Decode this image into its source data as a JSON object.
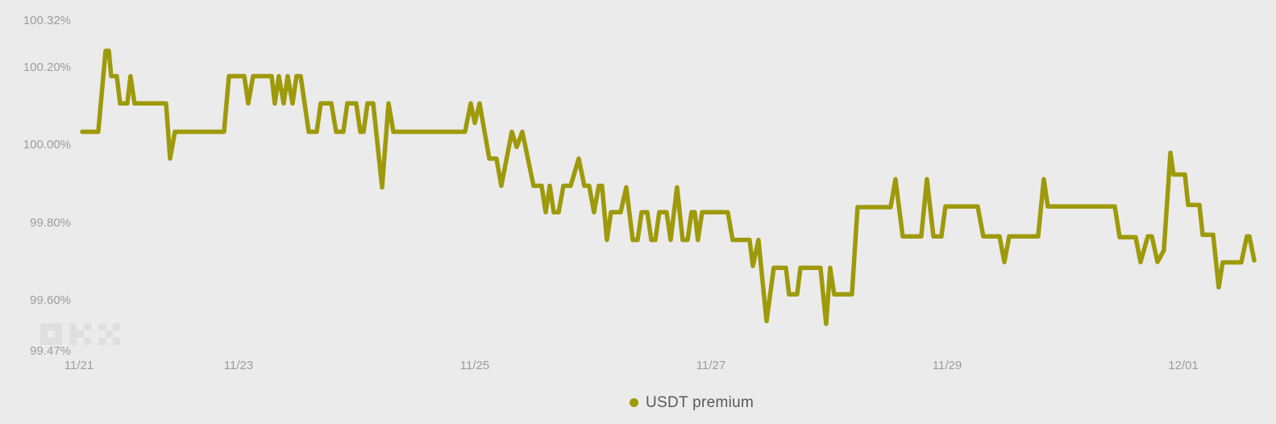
{
  "colors": {
    "background": "#ebebeb",
    "line": "#9e9a0b",
    "axis_text": "#9c9c9c",
    "legend_text": "#595959",
    "watermark": "#dfdfdf"
  },
  "legend": {
    "label": "USDT premium",
    "dot_icon": "series-dot-icon"
  },
  "watermark_name": "okx-logo",
  "chart_data": {
    "type": "line",
    "title": "",
    "grid": false,
    "legend_position": "bottom-center",
    "y_axis": {
      "min": 99.47,
      "max": 100.32,
      "unit": "%",
      "ticks": [
        {
          "label": "100.32%",
          "value": 100.32
        },
        {
          "label": "100.20%",
          "value": 100.2
        },
        {
          "label": "100.00%",
          "value": 100.0
        },
        {
          "label": "99.80%",
          "value": 99.8
        },
        {
          "label": "99.60%",
          "value": 99.6
        },
        {
          "label": "99.47%",
          "value": 99.47
        }
      ]
    },
    "x_axis": {
      "unit": "days since 11/21 00:00",
      "t_min": 0.676,
      "t_max": 10.601,
      "ticks": [
        {
          "label": "11/21",
          "t": 0.649
        },
        {
          "label": "11/23",
          "t": 2.0
        },
        {
          "label": "11/25",
          "t": 4.0
        },
        {
          "label": "11/27",
          "t": 6.0
        },
        {
          "label": "11/29",
          "t": 8.0
        },
        {
          "label": "12/01",
          "t": 10.0
        }
      ]
    },
    "series": [
      {
        "name": "USDT premium",
        "color": "#9e9a0b",
        "points": [
          [
            0.676,
            100.035
          ],
          [
            0.812,
            100.035
          ],
          [
            0.874,
            100.243
          ],
          [
            0.901,
            100.243
          ],
          [
            0.921,
            100.178
          ],
          [
            0.969,
            100.178
          ],
          [
            0.997,
            100.108
          ],
          [
            1.058,
            100.108
          ],
          [
            1.085,
            100.178
          ],
          [
            1.119,
            100.108
          ],
          [
            1.386,
            100.108
          ],
          [
            1.42,
            99.966
          ],
          [
            1.461,
            100.035
          ],
          [
            1.877,
            100.035
          ],
          [
            1.918,
            100.178
          ],
          [
            2.048,
            100.178
          ],
          [
            2.082,
            100.108
          ],
          [
            2.123,
            100.178
          ],
          [
            2.28,
            100.178
          ],
          [
            2.307,
            100.108
          ],
          [
            2.341,
            100.178
          ],
          [
            2.382,
            100.108
          ],
          [
            2.416,
            100.178
          ],
          [
            2.457,
            100.108
          ],
          [
            2.491,
            100.178
          ],
          [
            2.526,
            100.178
          ],
          [
            2.594,
            100.035
          ],
          [
            2.662,
            100.035
          ],
          [
            2.696,
            100.108
          ],
          [
            2.785,
            100.108
          ],
          [
            2.826,
            100.035
          ],
          [
            2.887,
            100.035
          ],
          [
            2.921,
            100.108
          ],
          [
            2.996,
            100.108
          ],
          [
            3.031,
            100.035
          ],
          [
            3.058,
            100.035
          ],
          [
            3.092,
            100.108
          ],
          [
            3.14,
            100.108
          ],
          [
            3.215,
            99.892
          ],
          [
            3.27,
            100.108
          ],
          [
            3.311,
            100.035
          ],
          [
            3.918,
            100.035
          ],
          [
            3.966,
            100.108
          ],
          [
            4.0,
            100.058
          ],
          [
            4.041,
            100.108
          ],
          [
            4.123,
            99.966
          ],
          [
            4.184,
            99.966
          ],
          [
            4.225,
            99.896
          ],
          [
            4.314,
            100.035
          ],
          [
            4.355,
            99.996
          ],
          [
            4.403,
            100.035
          ],
          [
            4.498,
            99.896
          ],
          [
            4.566,
            99.896
          ],
          [
            4.601,
            99.828
          ],
          [
            4.635,
            99.896
          ],
          [
            4.669,
            99.828
          ],
          [
            4.71,
            99.828
          ],
          [
            4.751,
            99.896
          ],
          [
            4.812,
            99.896
          ],
          [
            4.881,
            99.966
          ],
          [
            4.928,
            99.896
          ],
          [
            4.969,
            99.896
          ],
          [
            5.01,
            99.828
          ],
          [
            5.051,
            99.896
          ],
          [
            5.078,
            99.896
          ],
          [
            5.119,
            99.757
          ],
          [
            5.154,
            99.828
          ],
          [
            5.236,
            99.828
          ],
          [
            5.283,
            99.892
          ],
          [
            5.338,
            99.757
          ],
          [
            5.379,
            99.757
          ],
          [
            5.413,
            99.828
          ],
          [
            5.461,
            99.828
          ],
          [
            5.495,
            99.757
          ],
          [
            5.529,
            99.757
          ],
          [
            5.563,
            99.828
          ],
          [
            5.624,
            99.828
          ],
          [
            5.659,
            99.757
          ],
          [
            5.713,
            99.892
          ],
          [
            5.761,
            99.757
          ],
          [
            5.802,
            99.757
          ],
          [
            5.836,
            99.828
          ],
          [
            5.863,
            99.828
          ],
          [
            5.89,
            99.757
          ],
          [
            5.925,
            99.828
          ],
          [
            6.143,
            99.828
          ],
          [
            6.184,
            99.757
          ],
          [
            6.327,
            99.757
          ],
          [
            6.355,
            99.69
          ],
          [
            6.402,
            99.757
          ],
          [
            6.471,
            99.548
          ],
          [
            6.532,
            99.685
          ],
          [
            6.635,
            99.685
          ],
          [
            6.662,
            99.617
          ],
          [
            6.73,
            99.617
          ],
          [
            6.758,
            99.685
          ],
          [
            6.928,
            99.685
          ],
          [
            6.976,
            99.541
          ],
          [
            7.01,
            99.685
          ],
          [
            7.044,
            99.617
          ],
          [
            7.194,
            99.617
          ],
          [
            7.242,
            99.841
          ],
          [
            7.522,
            99.841
          ],
          [
            7.563,
            99.913
          ],
          [
            7.624,
            99.766
          ],
          [
            7.781,
            99.766
          ],
          [
            7.829,
            99.913
          ],
          [
            7.884,
            99.766
          ],
          [
            7.952,
            99.766
          ],
          [
            7.986,
            99.843
          ],
          [
            8.259,
            99.843
          ],
          [
            8.307,
            99.766
          ],
          [
            8.444,
            99.766
          ],
          [
            8.485,
            99.7
          ],
          [
            8.526,
            99.766
          ],
          [
            8.771,
            99.766
          ],
          [
            8.819,
            99.913
          ],
          [
            8.853,
            99.843
          ],
          [
            9.42,
            99.843
          ],
          [
            9.461,
            99.764
          ],
          [
            9.597,
            99.764
          ],
          [
            9.638,
            99.7
          ],
          [
            9.7,
            99.766
          ],
          [
            9.734,
            99.766
          ],
          [
            9.782,
            99.7
          ],
          [
            9.836,
            99.73
          ],
          [
            9.891,
            99.981
          ],
          [
            9.918,
            99.925
          ],
          [
            10.014,
            99.925
          ],
          [
            10.041,
            99.847
          ],
          [
            10.137,
            99.847
          ],
          [
            10.164,
            99.77
          ],
          [
            10.253,
            99.77
          ],
          [
            10.3,
            99.635
          ],
          [
            10.334,
            99.699
          ],
          [
            10.491,
            99.699
          ],
          [
            10.539,
            99.766
          ],
          [
            10.56,
            99.766
          ],
          [
            10.601,
            99.704
          ]
        ]
      }
    ]
  }
}
